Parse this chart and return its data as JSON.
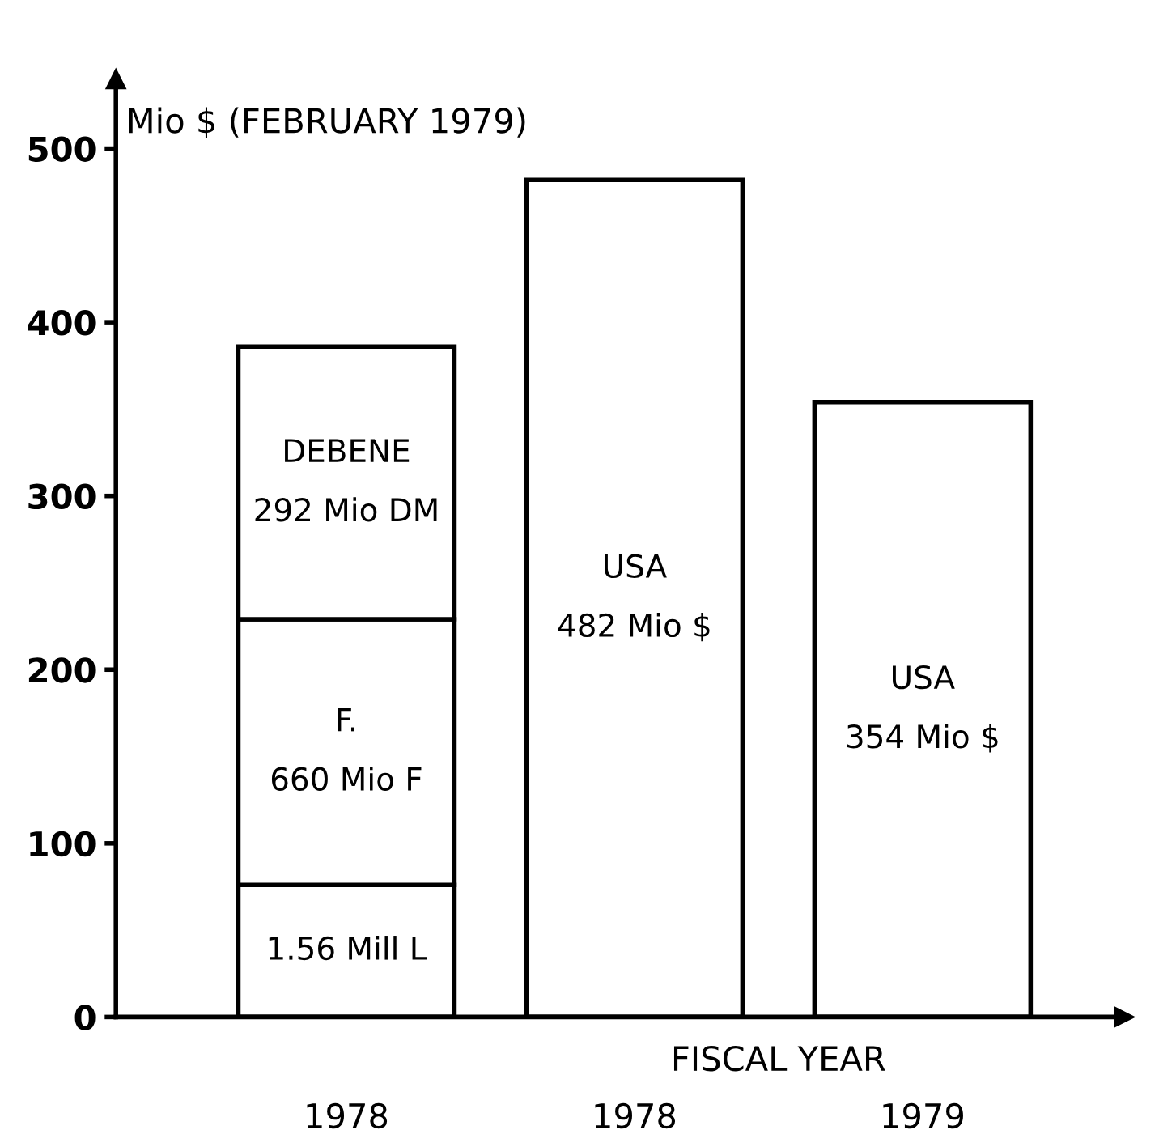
{
  "chart_data": {
    "type": "bar",
    "stacked": true,
    "ylabel": "Mio $ (FEBRUARY 1979)",
    "xlabel": "FISCAL YEAR",
    "categories": [
      "1978",
      "1978",
      "1979"
    ],
    "series": [
      {
        "color": "#ffffff",
        "values": [
          76,
          null,
          null
        ]
      },
      {
        "color": "#ffffff",
        "values": [
          153,
          null,
          null
        ]
      },
      {
        "color": "#ffffff",
        "values": [
          157,
          null,
          null
        ]
      },
      {
        "color": "#ffffff",
        "values": [
          null,
          482,
          354
        ]
      }
    ],
    "annotations": [
      "1.56 Mill L",
      "F.\n660 Mio F",
      "DEBENE\n292 Mio DM",
      "USA\n482 Mio $",
      "USA\n354 Mio $"
    ],
    "ylim": [
      0,
      540
    ],
    "yticks": [
      0,
      100,
      200,
      300,
      400,
      500
    ],
    "grid": false,
    "legend": false
  }
}
